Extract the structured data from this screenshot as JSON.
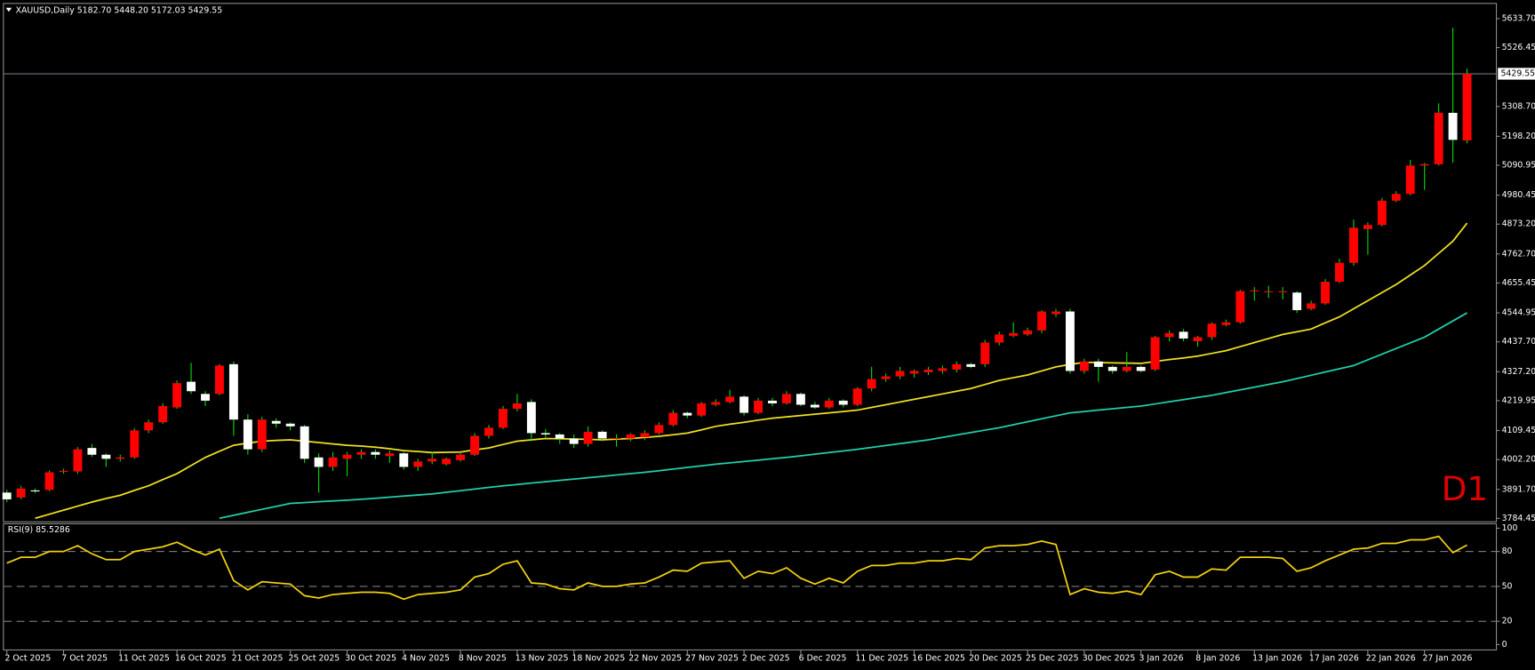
{
  "chart_data": [
    {
      "type": "candlestick",
      "title": "XAUUSD,Daily  5182.70 5448.20 5172.03 5429.55",
      "watermark": "D1",
      "up_color": "#ff0000",
      "down_color": "#ffffff",
      "wick_color": "#00e000",
      "watermark_color": "#e00000",
      "categories": [
        "2 Oct 2025",
        null,
        null,
        null,
        "7 Oct 2025",
        null,
        null,
        null,
        "11 Oct 2025",
        null,
        null,
        null,
        "16 Oct 2025",
        null,
        null,
        null,
        "21 Oct 2025",
        null,
        null,
        null,
        "25 Oct 2025",
        null,
        null,
        null,
        "30 Oct 2025",
        null,
        null,
        null,
        "4 Nov 2025",
        null,
        null,
        null,
        "8 Nov 2025",
        null,
        null,
        null,
        "13 Nov 2025",
        null,
        null,
        null,
        "18 Nov 2025",
        null,
        null,
        null,
        "22 Nov 2025",
        null,
        null,
        null,
        "27 Nov 2025",
        null,
        null,
        null,
        "2 Dec 2025",
        null,
        null,
        null,
        "6 Dec 2025",
        null,
        null,
        null,
        "11 Dec 2025",
        null,
        null,
        null,
        "16 Dec 2025",
        null,
        null,
        null,
        "20 Dec 2025",
        null,
        null,
        null,
        "25 Dec 2025",
        null,
        null,
        null,
        "30 Dec 2025",
        null,
        null,
        null,
        "3 Jan 2026",
        null,
        null,
        null,
        "8 Jan 2026",
        null,
        null,
        null,
        "13 Jan 2026",
        null,
        null,
        null,
        "17 Jan 2026",
        null,
        null,
        null,
        "22 Jan 2026",
        null,
        null,
        null,
        "27 Jan 2026",
        null,
        null,
        null
      ],
      "open": [
        3880,
        3862,
        3888,
        3890,
        3958,
        3958,
        4045,
        4020,
        4005,
        4010,
        4110,
        4140,
        4195,
        4290,
        4245,
        4245,
        4355,
        4150,
        4040,
        4145,
        4135,
        4125,
        4010,
        3975,
        4005,
        4020,
        4030,
        4015,
        4025,
        3975,
        3995,
        3985,
        4000,
        4020,
        4090,
        4120,
        4190,
        4215,
        4100,
        4095,
        4080,
        4060,
        4105,
        4080,
        4080,
        4085,
        4100,
        4130,
        4175,
        4165,
        4205,
        4215,
        4235,
        4175,
        4220,
        4210,
        4245,
        4205,
        4195,
        4220,
        4205,
        4265,
        4300,
        4310,
        4320,
        4325,
        4330,
        4335,
        4355,
        4355,
        4435,
        4460,
        4465,
        4480,
        4540,
        4550,
        4330,
        4365,
        4345,
        4330,
        4345,
        4335,
        4455,
        4475,
        4440,
        4455,
        4500,
        4510,
        4625,
        4622,
        4622,
        4620,
        4560,
        4580,
        4660,
        4730,
        4855,
        4870,
        4960,
        4985,
        5090,
        5095,
        5285,
        5182.7
      ],
      "high": [
        3890,
        3905,
        3895,
        3962,
        3968,
        4048,
        4060,
        4025,
        4020,
        4118,
        4150,
        4210,
        4295,
        4360,
        4255,
        4355,
        4365,
        4170,
        4160,
        4155,
        4140,
        4130,
        4025,
        4030,
        4030,
        4040,
        4040,
        4035,
        4030,
        4005,
        4030,
        4010,
        4025,
        4100,
        4130,
        4200,
        4245,
        4225,
        4115,
        4100,
        4095,
        4125,
        4110,
        4095,
        4100,
        4110,
        4140,
        4185,
        4180,
        4215,
        4225,
        4260,
        4240,
        4230,
        4230,
        4255,
        4250,
        4215,
        4230,
        4225,
        4270,
        4345,
        4320,
        4345,
        4335,
        4345,
        4350,
        4365,
        4360,
        4445,
        4475,
        4510,
        4490,
        4555,
        4560,
        4560,
        4375,
        4375,
        4350,
        4400,
        4350,
        4460,
        4480,
        4485,
        4460,
        4510,
        4520,
        4630,
        4640,
        4645,
        4640,
        4625,
        4590,
        4670,
        4745,
        4890,
        4880,
        4970,
        4995,
        5110,
        5100,
        5320,
        5600,
        5448.2
      ],
      "low": [
        3845,
        3855,
        3878,
        3885,
        3950,
        3950,
        4012,
        3975,
        3995,
        4005,
        4100,
        4135,
        4190,
        4245,
        4200,
        4240,
        4090,
        4020,
        4030,
        4120,
        4110,
        3990,
        3880,
        3960,
        3940,
        4005,
        4005,
        3990,
        3965,
        3960,
        3985,
        3980,
        3995,
        4015,
        4080,
        4115,
        4180,
        4070,
        4085,
        4060,
        4045,
        4050,
        4070,
        4050,
        4070,
        4075,
        4095,
        4125,
        4155,
        4160,
        4200,
        4210,
        4165,
        4170,
        4200,
        4205,
        4200,
        4190,
        4190,
        4195,
        4200,
        4255,
        4290,
        4300,
        4305,
        4315,
        4320,
        4325,
        4340,
        4345,
        4425,
        4455,
        4460,
        4470,
        4530,
        4320,
        4320,
        4290,
        4320,
        4325,
        4325,
        4330,
        4440,
        4440,
        4420,
        4445,
        4495,
        4505,
        4590,
        4600,
        4595,
        4545,
        4555,
        4575,
        4655,
        4720,
        4760,
        4865,
        4955,
        4980,
        5000,
        5090,
        5100,
        5172.03
      ],
      "close": [
        3855,
        3895,
        3885,
        3955,
        3960,
        4040,
        4020,
        4005,
        4010,
        4110,
        4140,
        4200,
        4285,
        4255,
        4220,
        4350,
        4150,
        4040,
        4150,
        4135,
        4125,
        4005,
        3975,
        4010,
        4020,
        4030,
        4020,
        4025,
        3975,
        3995,
        4005,
        4005,
        4020,
        4090,
        4120,
        4190,
        4210,
        4100,
        4095,
        4080,
        4060,
        4105,
        4080,
        4082,
        4095,
        4100,
        4130,
        4175,
        4165,
        4210,
        4215,
        4235,
        4175,
        4220,
        4210,
        4245,
        4205,
        4195,
        4220,
        4205,
        4265,
        4300,
        4310,
        4330,
        4330,
        4335,
        4340,
        4355,
        4345,
        4435,
        4465,
        4470,
        4480,
        4550,
        4550,
        4330,
        4365,
        4345,
        4330,
        4345,
        4330,
        4455,
        4470,
        4450,
        4455,
        4505,
        4510,
        4625,
        4628,
        4625,
        4625,
        4555,
        4580,
        4660,
        4730,
        4860,
        4870,
        4960,
        4985,
        5090,
        5095,
        5285,
        5185,
        5429.55
      ],
      "series": [
        {
          "color": "#f0e020",
          "values": [
            null,
            null,
            3785,
            3800,
            3815,
            3830,
            3845,
            3858,
            3870,
            3888,
            3905,
            3928,
            3950,
            3980,
            4010,
            4033,
            4055,
            4063,
            4070,
            4073,
            4075,
            4070,
            4065,
            4060,
            4055,
            4052,
            4048,
            4042,
            4035,
            4032,
            4028,
            4029,
            4030,
            4038,
            4045,
            4058,
            4070,
            4075,
            4080,
            4079,
            4078,
            4077,
            4075,
            4078,
            4080,
            4084,
            4088,
            4094,
            4100,
            4112,
            4125,
            4133,
            4140,
            4148,
            4155,
            4160,
            4165,
            4170,
            4175,
            4180,
            4185,
            4195,
            4205,
            4215,
            4225,
            4235,
            4245,
            4255,
            4265,
            4280,
            4295,
            4305,
            4315,
            4330,
            4345,
            4354,
            4362,
            4361,
            4360,
            4359,
            4358,
            4365,
            4372,
            4378,
            4385,
            4395,
            4405,
            4420,
            4435,
            4450,
            4465,
            4475,
            4485,
            4508,
            4530,
            4560,
            4590,
            4620,
            4650,
            4685,
            4720,
            4765,
            4810,
            4877
          ]
        },
        {
          "color": "#20d0a8",
          "values": [
            null,
            null,
            null,
            null,
            null,
            null,
            null,
            null,
            null,
            null,
            null,
            null,
            null,
            null,
            null,
            3785,
            3796,
            3807,
            3818,
            3829,
            3840,
            3843,
            3846,
            3849,
            3852,
            3855,
            3859,
            3863,
            3867,
            3871,
            3875,
            3881,
            3887,
            3893,
            3899,
            3905,
            3910,
            3915,
            3920,
            3925,
            3930,
            3935,
            3940,
            3945,
            3950,
            3955,
            3961,
            3967,
            3973,
            3979,
            3985,
            3990,
            3995,
            4000,
            4005,
            4010,
            4016,
            4022,
            4028,
            4034,
            4040,
            4047,
            4054,
            4061,
            4068,
            4075,
            4084,
            4093,
            4102,
            4111,
            4120,
            4131,
            4142,
            4153,
            4164,
            4175,
            4180,
            4185,
            4190,
            4195,
            4200,
            4208,
            4216,
            4224,
            4232,
            4240,
            4250,
            4260,
            4270,
            4280,
            4290,
            4302,
            4314,
            4326,
            4338,
            4350,
            4371,
            4392,
            4413,
            4434,
            4455,
            4485,
            4515,
            4545
          ]
        }
      ],
      "price_line": {
        "value": 5429.55,
        "label": "5429.55"
      },
      "ylim": [
        3773.6,
        5691.6
      ],
      "yticks": [
        {
          "value": 5633.7,
          "label": "5633.70"
        },
        {
          "value": 5526.45,
          "label": "5526.45"
        },
        {
          "value": 5308.7,
          "label": "5308.70"
        },
        {
          "value": 5198.2,
          "label": "5198.20"
        },
        {
          "value": 5090.95,
          "label": "5090.95"
        },
        {
          "value": 4980.45,
          "label": "4980.45"
        },
        {
          "value": 4873.2,
          "label": "4873.20"
        },
        {
          "value": 4762.7,
          "label": "4762.70"
        },
        {
          "value": 4655.45,
          "label": "4655.45"
        },
        {
          "value": 4544.95,
          "label": "4544.95"
        },
        {
          "value": 4437.7,
          "label": "4437.70"
        },
        {
          "value": 4327.2,
          "label": "4327.20"
        },
        {
          "value": 4219.95,
          "label": "4219.95"
        },
        {
          "value": 4109.45,
          "label": "4109.45"
        },
        {
          "value": 4002.2,
          "label": "4002.20"
        },
        {
          "value": 3891.7,
          "label": "3891.70"
        },
        {
          "value": 3784.45,
          "label": "3784.45"
        }
      ]
    },
    {
      "type": "line",
      "title": "RSI(9) 85.5286",
      "series": [
        {
          "color": "#f0d010",
          "values": [
            70,
            75,
            75,
            80,
            80,
            85,
            78,
            73,
            73,
            80,
            82,
            84,
            88,
            82,
            77,
            82,
            55,
            47,
            54,
            53,
            52,
            42,
            40,
            43,
            44,
            45,
            45,
            44,
            39,
            43,
            44,
            45,
            47,
            58,
            61,
            69,
            72,
            53,
            52,
            48,
            47,
            53,
            50,
            50,
            52,
            53,
            58,
            64,
            63,
            70,
            71,
            72,
            57,
            63,
            61,
            66,
            57,
            52,
            57,
            53,
            63,
            68,
            68,
            70,
            70,
            72,
            72,
            74,
            73,
            83,
            85,
            85,
            86,
            89,
            86,
            43,
            48,
            45,
            44,
            46,
            43,
            60,
            63,
            58,
            58,
            65,
            64,
            75,
            75,
            75,
            74,
            63,
            66,
            72,
            77,
            82,
            83,
            87,
            87,
            90,
            90,
            93,
            79,
            85.5286
          ]
        }
      ],
      "levels": [
        80,
        50,
        20
      ],
      "ylim": [
        -4.2,
        103.4
      ],
      "yticks": [
        100,
        80,
        50,
        20,
        0
      ]
    }
  ]
}
